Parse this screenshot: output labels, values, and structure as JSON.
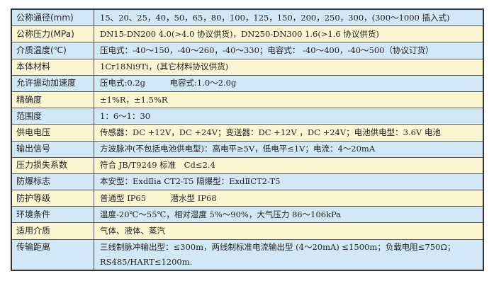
{
  "rows": [
    {
      "label": "公称通径(mm)",
      "value": "15、20、25，40，50，65，80，100，125，150，200，250，300，(300～1000 插入式)"
    },
    {
      "label": "公称压力(MPa)",
      "value": "DN15-DN200 4.0(>4.0 协议供货)，DN250-DN300 1.6(>1.6 协议供货)"
    },
    {
      "label": "介质温度(℃)",
      "value": "压电式：-40～150，-40～260，-40～330；电容式： -40～400，-40～500（协议订货）"
    },
    {
      "label": "本体材料",
      "value": "1Cr18Ni9Ti，(其它材料协议供货)"
    },
    {
      "label": "允许振动加速度",
      "value": "压电式:0.2g　　　电容式:1.0～2.0g"
    },
    {
      "label": "精确度",
      "value": "±1%R，±1.5%R"
    },
    {
      "label": "范围度",
      "value": "1：6～1：30"
    },
    {
      "label": "供电电压",
      "value": "传感器：DC +12V，DC +24V；变送器：DC +12V ，DC +24V；电池供电型：3.6V 电池"
    },
    {
      "label": "输出信号",
      "value": "方波脉冲(不包括电池供电型)：高电平≥5V，低电平≤1V；电流：4～20mA"
    },
    {
      "label": "压力损失系数",
      "value": "符合 JB/T9249 标准　Cd≤2.4"
    },
    {
      "label": "防爆标志",
      "value": "本安型：ExdⅡia CT2-T5 隔爆型：ExdⅡCT2-T5"
    },
    {
      "label": "防护等级",
      "value": "普通型 IP65　　　潜水型 IP68"
    },
    {
      "label": "环境条件",
      "value": "温度-20℃～55℃，相对湿度 5%～90%，大气压力 86～106kPa"
    },
    {
      "label": "适用介质",
      "value": "气体、液体、蒸汽"
    },
    {
      "label": "传输距离",
      "value": "三线制脉冲输出型：≤300m，两线制标准电流输出型 (4～20mA) ≤1500m；负载电阻≤750Ω；　RS485/HART≤1200m."
    }
  ],
  "colors": {
    "row_blue": "#d3e8f6",
    "row_yellow": "#fdf6d3",
    "border": "#333333"
  }
}
